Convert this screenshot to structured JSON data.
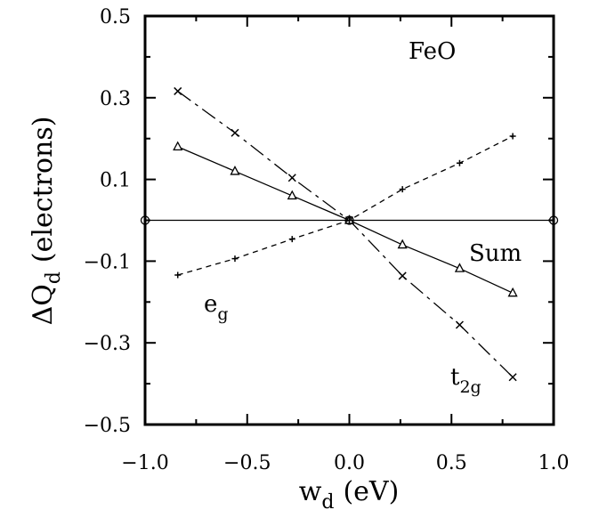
{
  "chart_data": {
    "type": "line",
    "title": "",
    "xlabel": {
      "main": "w",
      "sub": "d",
      "unit": "(eV)"
    },
    "ylabel": {
      "main": "ΔQ",
      "sub": "d",
      "unit": "(electrons)"
    },
    "xlim": [
      -1.0,
      1.0
    ],
    "ylim": [
      -0.5,
      0.5
    ],
    "x_ticks": [
      "−1.0",
      "−0.5",
      "0.0",
      "0.5",
      "1.0"
    ],
    "y_ticks": [
      "0.5",
      "0.3",
      "0.1",
      "−0.1",
      "−0.3",
      "−0.5"
    ],
    "grid": false,
    "annotations": {
      "feo": "FeO",
      "sum": "Sum",
      "eg": {
        "main": "e",
        "sub": "g"
      },
      "t2g": {
        "main": "t",
        "sub": "2g"
      }
    },
    "series": [
      {
        "key": "t2g",
        "marker": "x",
        "style": "dashdot",
        "x": [
          -0.84,
          -0.56,
          -0.28,
          0.0,
          0.26,
          0.54,
          0.8
        ],
        "y": [
          0.316,
          0.214,
          0.104,
          0.0,
          -0.136,
          -0.256,
          -0.384
        ]
      },
      {
        "key": "sum",
        "marker": "triangle",
        "style": "solid",
        "x": [
          -0.84,
          -0.56,
          -0.28,
          0.0,
          0.26,
          0.54,
          0.8
        ],
        "y": [
          0.18,
          0.12,
          0.06,
          0.0,
          -0.06,
          -0.118,
          -0.178
        ]
      },
      {
        "key": "eg",
        "marker": "plus",
        "style": "dashed",
        "x": [
          -0.84,
          -0.56,
          -0.28,
          0.0,
          0.26,
          0.54,
          0.8
        ],
        "y": [
          -0.134,
          -0.094,
          -0.046,
          0.0,
          0.076,
          0.14,
          0.206
        ]
      },
      {
        "key": "zero",
        "marker": "circle",
        "style": "solid",
        "x": [
          -1.0,
          0.0,
          1.0
        ],
        "y": [
          0.0,
          0.0,
          0.0
        ]
      }
    ]
  }
}
